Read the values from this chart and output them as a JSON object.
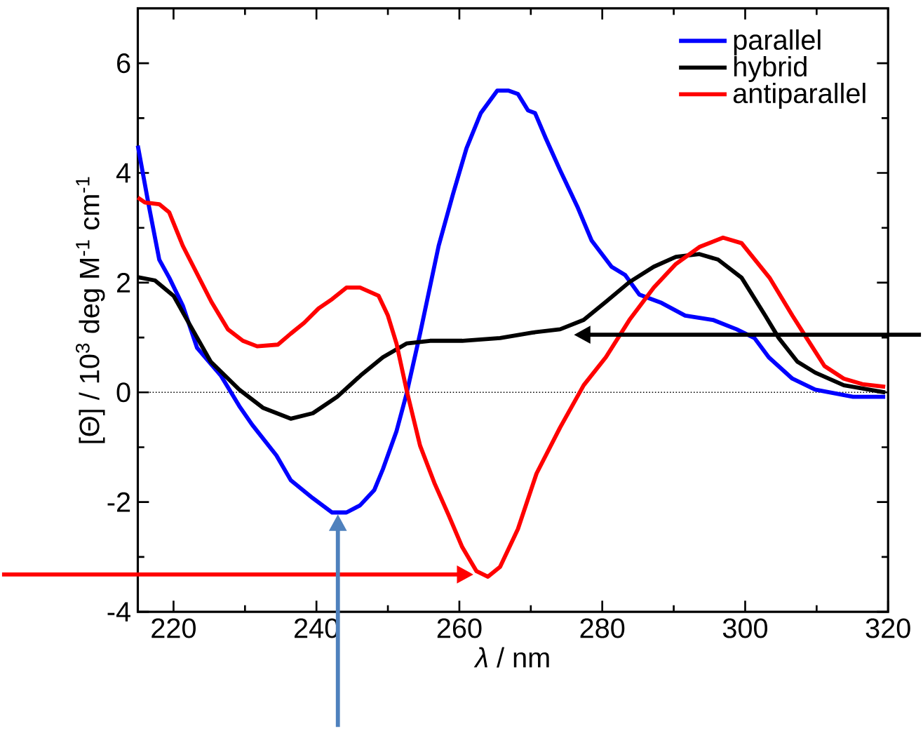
{
  "chart_data": {
    "type": "line",
    "xlabel": "*λ* / nm",
    "ylabel": "[Θ] / 10$^{3}$ deg M$^{-1}$ cm$^{-1}$",
    "xlim": [
      215,
      320
    ],
    "ylim": [
      -4,
      7
    ],
    "xticks": [
      220,
      240,
      260,
      280,
      300,
      320
    ],
    "yticks": [
      -4,
      -2,
      0,
      2,
      4,
      6
    ],
    "legend": "top right",
    "ref_lines": [
      {
        "axis": "y",
        "value": 0,
        "color": "#000000",
        "line_style": "dotted"
      }
    ],
    "series": [
      {
        "name": "parallel",
        "color": "#0000ff",
        "x": [
          215,
          216.5,
          218,
          219.4,
          221.3,
          223.3,
          226.6,
          229.2,
          231,
          234.4,
          236.4,
          239.5,
          242.2,
          244.2,
          246.1,
          248.1,
          249.3,
          251.2,
          252.6,
          254.5,
          257.1,
          259.1,
          261,
          263,
          265.3,
          266.9,
          268.2,
          269.6,
          270.6,
          272.1,
          274.1,
          276.6,
          278.5,
          281.3,
          283.2,
          285.2,
          288.3,
          291.6,
          295.5,
          298.8,
          301.3,
          303.3,
          306.6,
          309.8,
          315.1,
          319.6
        ],
        "values": [
          4.5,
          3.43,
          2.42,
          2.09,
          1.58,
          0.81,
          0.31,
          -0.25,
          -0.59,
          -1.15,
          -1.6,
          -1.93,
          -2.19,
          -2.19,
          -2.06,
          -1.78,
          -1.4,
          -0.71,
          -0.03,
          1.07,
          2.67,
          3.61,
          4.45,
          5.09,
          5.5,
          5.5,
          5.44,
          5.14,
          5.09,
          4.63,
          4.05,
          3.36,
          2.77,
          2.29,
          2.14,
          1.78,
          1.63,
          1.4,
          1.32,
          1.15,
          0.99,
          0.64,
          0.25,
          0.05,
          -0.08,
          -0.08
        ]
      },
      {
        "name": "hybrid",
        "color": "#000000",
        "x": [
          215,
          217.4,
          220,
          221.9,
          225.2,
          229.2,
          232.5,
          236.4,
          239.5,
          242.9,
          246.2,
          249.3,
          252.6,
          255.9,
          260.4,
          265.7,
          270.2,
          274.1,
          277.4,
          280.5,
          283.8,
          287.2,
          290.3,
          293.6,
          296.2,
          299.5,
          302.8,
          304.7,
          307.3,
          309.8,
          313.8,
          319.6
        ],
        "values": [
          2.1,
          2.04,
          1.76,
          1.32,
          0.56,
          0.05,
          -0.28,
          -0.48,
          -0.38,
          -0.08,
          0.31,
          0.64,
          0.89,
          0.94,
          0.94,
          0.99,
          1.09,
          1.15,
          1.32,
          1.65,
          2.01,
          2.29,
          2.47,
          2.52,
          2.42,
          2.09,
          1.4,
          0.99,
          0.56,
          0.36,
          0.13,
          0.0
        ]
      },
      {
        "name": "antiparallel",
        "color": "#ff0000",
        "x": [
          215,
          216,
          218,
          219.4,
          221.3,
          223.3,
          225.3,
          227.6,
          229.7,
          231.7,
          234.6,
          236.4,
          238.3,
          240.3,
          242.2,
          244.2,
          246.1,
          248.7,
          250,
          251.2,
          252.6,
          254.5,
          256.5,
          258.5,
          260.4,
          262.4,
          264,
          265.7,
          268.2,
          270.8,
          274.1,
          277.4,
          280.5,
          283.8,
          287.2,
          290.3,
          293.6,
          296.9,
          299.5,
          303.4,
          306.6,
          308.6,
          311.1,
          313.8,
          316.4,
          319.6
        ],
        "values": [
          3.55,
          3.46,
          3.43,
          3.28,
          2.67,
          2.16,
          1.65,
          1.15,
          0.94,
          0.84,
          0.87,
          1.07,
          1.27,
          1.53,
          1.7,
          1.91,
          1.91,
          1.76,
          1.4,
          0.89,
          0.05,
          -0.97,
          -1.65,
          -2.24,
          -2.82,
          -3.26,
          -3.36,
          -3.18,
          -2.49,
          -1.48,
          -0.64,
          0.13,
          0.64,
          1.32,
          1.91,
          2.34,
          2.65,
          2.82,
          2.72,
          2.09,
          1.4,
          0.99,
          0.48,
          0.25,
          0.15,
          0.1
        ]
      }
    ]
  }
}
